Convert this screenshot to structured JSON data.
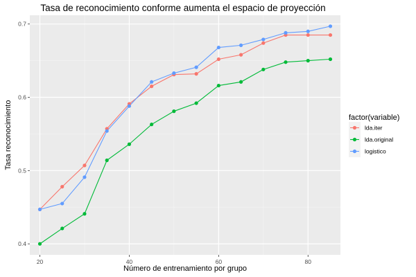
{
  "chart_data": {
    "type": "line",
    "title": "Tasa de reconocimiento conforme aumenta el espacio de proyección",
    "xlabel": "Número de entrenamiento por grupo",
    "ylabel": "Tasa reconocimiento",
    "xlim": [
      17.75,
      87.25
    ],
    "ylim": [
      0.385,
      0.712
    ],
    "x_ticks": [
      20,
      40,
      60,
      80
    ],
    "x_tick_labels": [
      "20",
      "40",
      "60",
      "80"
    ],
    "y_ticks": [
      0.4,
      0.5,
      0.6,
      0.7
    ],
    "y_tick_labels": [
      "0.4",
      "0.5",
      "0.6",
      "0.7"
    ],
    "x": [
      20,
      25,
      30,
      35,
      40,
      45,
      50,
      55,
      60,
      65,
      70,
      75,
      80,
      85
    ],
    "grid": true,
    "legend_position": "right",
    "legend_title": "factor(variable)",
    "series": [
      {
        "name": "lda.iter",
        "color": "#F8766D",
        "values": [
          0.447,
          0.478,
          0.507,
          0.557,
          0.591,
          0.615,
          0.631,
          0.632,
          0.652,
          0.658,
          0.674,
          0.685,
          0.685,
          0.685
        ]
      },
      {
        "name": "lda.original",
        "color": "#00BA38",
        "values": [
          0.4,
          0.421,
          0.441,
          0.514,
          0.536,
          0.563,
          0.581,
          0.592,
          0.616,
          0.621,
          0.638,
          0.648,
          0.65,
          0.652
        ]
      },
      {
        "name": "logistico",
        "color": "#619CFF",
        "values": [
          0.447,
          0.455,
          0.491,
          0.554,
          0.588,
          0.621,
          0.633,
          0.641,
          0.668,
          0.671,
          0.679,
          0.688,
          0.69,
          0.697
        ]
      }
    ]
  }
}
